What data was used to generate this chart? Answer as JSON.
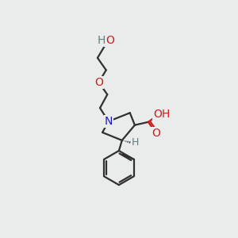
{
  "bg_color": "#eaecec",
  "C": "#303030",
  "N": "#1a1acc",
  "O": "#cc1a1a",
  "H": "#5a8080",
  "lw": 1.6,
  "fs": 10
}
